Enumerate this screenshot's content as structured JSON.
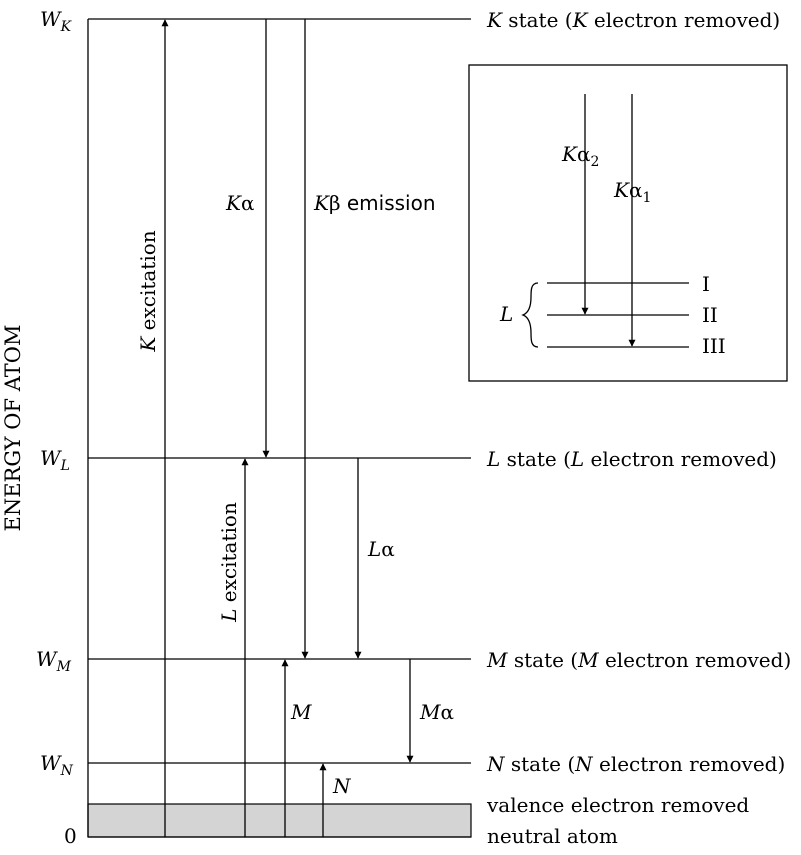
{
  "axis": {
    "ylabel": "ENERGY OF ATOM"
  },
  "levels": [
    {
      "letter": "W",
      "subscript": "K",
      "state_letter": "K",
      "state_text": " state (",
      "removed_letter": "K",
      "removed_text": " electron removed)"
    },
    {
      "letter": "W",
      "subscript": "L",
      "state_letter": "L",
      "state_text": " state (",
      "removed_letter": "L",
      "removed_text": " electron removed)"
    },
    {
      "letter": "W",
      "subscript": "M",
      "state_letter": "M",
      "state_text": " state (",
      "removed_letter": "M",
      "removed_text": " electron removed)"
    },
    {
      "letter": "W",
      "subscript": "N",
      "state_letter": "N",
      "state_text": " state (",
      "removed_letter": "N",
      "removed_text": " electron removed)"
    }
  ],
  "zero_label": "0",
  "valence_label": "valence electron removed",
  "neutral_label": "neutral atom",
  "transitions": {
    "k_excitation": {
      "letter": "K",
      "text": " excitation"
    },
    "l_excitation": {
      "letter": "L",
      "text": " excitation"
    },
    "k_alpha": {
      "letter": "K",
      "greek": "α"
    },
    "k_beta": {
      "letter": "K",
      "greek": "β",
      "text": " emission"
    },
    "l_alpha": {
      "letter": "L",
      "greek": "α"
    },
    "m_alpha": {
      "letter": "M",
      "greek": "α"
    },
    "m_label": "M",
    "n_label": "N"
  },
  "inset": {
    "l_label": "L",
    "k_alpha2": {
      "letter": "K",
      "greek": "α",
      "sub": "2"
    },
    "k_alpha1": {
      "letter": "K",
      "greek": "α",
      "sub": "1"
    },
    "sublevels": [
      "I",
      "II",
      "III"
    ]
  }
}
